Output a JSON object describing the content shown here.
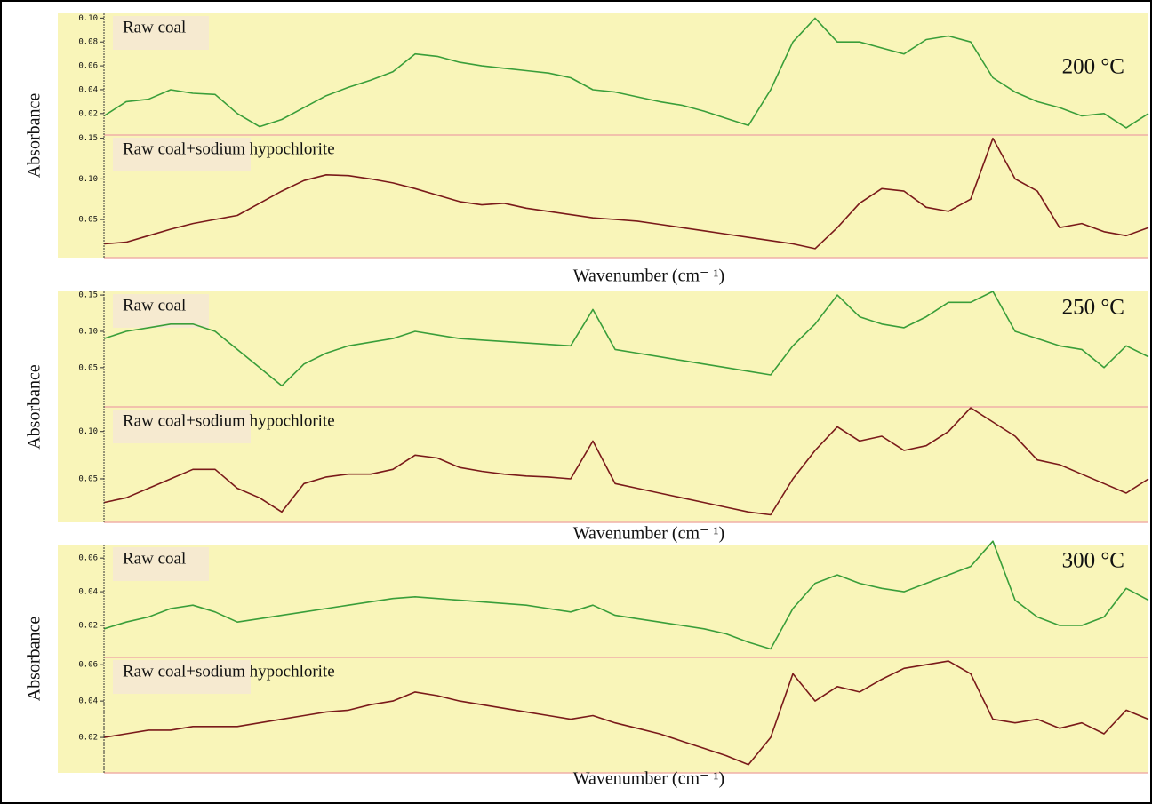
{
  "chart_data": [
    {
      "type": "line",
      "ylabel": "Absorbance",
      "xlabel": "Wavenumber (cm⁻ ¹)",
      "annotation": "200 °C",
      "subplots": [
        {
          "name": "Raw coal",
          "color": "#3a9e3a",
          "ylim": [
            0.002,
            0.104
          ],
          "yticks": [
            {
              "value": 0.1,
              "label": "0.10"
            },
            0.08,
            0.06,
            0.04,
            0.02
          ],
          "values": [
            0.018,
            0.03,
            0.032,
            0.04,
            0.037,
            0.036,
            0.02,
            0.009,
            0.015,
            0.025,
            0.035,
            0.042,
            0.048,
            0.055,
            0.07,
            0.068,
            0.063,
            0.06,
            0.058,
            0.056,
            0.054,
            0.05,
            0.04,
            0.038,
            0.034,
            0.03,
            0.027,
            0.022,
            0.016,
            0.01,
            0.04,
            0.08,
            0.1,
            0.08,
            0.08,
            0.075,
            0.07,
            0.082,
            0.085,
            0.08,
            0.05,
            0.038,
            0.03,
            0.025,
            0.018,
            0.02,
            0.008,
            0.02
          ]
        },
        {
          "name": "Raw coal+sodium hypochlorite",
          "color": "#7a1a1a",
          "ylim": [
            0.003,
            0.154
          ],
          "yticks": [
            0.15,
            {
              "value": 0.1,
              "label": "0.10"
            },
            0.05
          ],
          "values": [
            0.02,
            0.022,
            0.03,
            0.038,
            0.045,
            0.05,
            0.055,
            0.07,
            0.085,
            0.098,
            0.105,
            0.104,
            0.1,
            0.095,
            0.088,
            0.08,
            0.072,
            0.068,
            0.07,
            0.064,
            0.06,
            0.056,
            0.052,
            0.05,
            0.048,
            0.044,
            0.04,
            0.036,
            0.032,
            0.028,
            0.024,
            0.02,
            0.014,
            0.04,
            0.07,
            0.088,
            0.085,
            0.065,
            0.06,
            0.075,
            0.15,
            0.1,
            0.085,
            0.04,
            0.045,
            0.035,
            0.03,
            0.04
          ]
        }
      ]
    },
    {
      "type": "line",
      "ylabel": "Absorbance",
      "xlabel": "Wavenumber (cm⁻ ¹)",
      "annotation": "250 °C",
      "subplots": [
        {
          "name": "Raw coal",
          "color": "#3a9e3a",
          "ylim": [
            -0.004,
            0.155
          ],
          "yticks": [
            0.15,
            {
              "value": 0.1,
              "label": "0.10"
            },
            0.05
          ],
          "values": [
            0.09,
            0.1,
            0.105,
            0.11,
            0.11,
            0.1,
            0.075,
            0.05,
            0.025,
            0.055,
            0.07,
            0.08,
            0.085,
            0.09,
            0.1,
            0.095,
            0.09,
            0.088,
            0.086,
            0.084,
            0.082,
            0.08,
            0.13,
            0.075,
            0.07,
            0.065,
            0.06,
            0.055,
            0.05,
            0.045,
            0.04,
            0.08,
            0.11,
            0.15,
            0.12,
            0.11,
            0.105,
            0.12,
            0.14,
            0.14,
            0.155,
            0.1,
            0.09,
            0.08,
            0.075,
            0.05,
            0.08,
            0.065
          ]
        },
        {
          "name": "Raw coal+sodium hypochlorite",
          "color": "#7a1a1a",
          "ylim": [
            0.004,
            0.126
          ],
          "yticks": [
            {
              "value": 0.1,
              "label": "0.10"
            },
            0.05
          ],
          "values": [
            0.025,
            0.03,
            0.04,
            0.05,
            0.06,
            0.06,
            0.04,
            0.03,
            0.015,
            0.045,
            0.052,
            0.055,
            0.055,
            0.06,
            0.075,
            0.072,
            0.062,
            0.058,
            0.055,
            0.053,
            0.052,
            0.05,
            0.09,
            0.045,
            0.04,
            0.035,
            0.03,
            0.025,
            0.02,
            0.015,
            0.012,
            0.05,
            0.08,
            0.105,
            0.09,
            0.095,
            0.08,
            0.085,
            0.1,
            0.125,
            0.11,
            0.095,
            0.07,
            0.065,
            0.055,
            0.045,
            0.035,
            0.05
          ]
        }
      ]
    },
    {
      "type": "line",
      "ylabel": "Absorbance",
      "xlabel": "Wavenumber (cm⁻ ¹)",
      "annotation": "300 °C",
      "subplots": [
        {
          "name": "Raw coal",
          "color": "#3a9e3a",
          "ylim": [
            0.001,
            0.068
          ],
          "yticks": [
            0.06,
            0.04,
            0.02
          ],
          "values": [
            0.018,
            0.022,
            0.025,
            0.03,
            0.032,
            0.028,
            0.022,
            0.024,
            0.026,
            0.028,
            0.03,
            0.032,
            0.034,
            0.036,
            0.037,
            0.036,
            0.035,
            0.034,
            0.033,
            0.032,
            0.03,
            0.028,
            0.032,
            0.026,
            0.024,
            0.022,
            0.02,
            0.018,
            0.015,
            0.01,
            0.006,
            0.03,
            0.045,
            0.05,
            0.045,
            0.042,
            0.04,
            0.045,
            0.05,
            0.055,
            0.07,
            0.035,
            0.025,
            0.02,
            0.02,
            0.025,
            0.042,
            0.035
          ]
        },
        {
          "name": "Raw coal+sodium hypochlorite",
          "color": "#7a1a1a",
          "ylim": [
            0.0005,
            0.064
          ],
          "yticks": [
            0.06,
            0.04,
            0.02
          ],
          "values": [
            0.02,
            0.022,
            0.024,
            0.024,
            0.026,
            0.026,
            0.026,
            0.028,
            0.03,
            0.032,
            0.034,
            0.035,
            0.038,
            0.04,
            0.045,
            0.043,
            0.04,
            0.038,
            0.036,
            0.034,
            0.032,
            0.03,
            0.032,
            0.028,
            0.025,
            0.022,
            0.018,
            0.014,
            0.01,
            0.005,
            0.02,
            0.055,
            0.04,
            0.048,
            0.045,
            0.052,
            0.058,
            0.06,
            0.062,
            0.055,
            0.03,
            0.028,
            0.03,
            0.025,
            0.028,
            0.022,
            0.035,
            0.03
          ]
        }
      ]
    }
  ]
}
